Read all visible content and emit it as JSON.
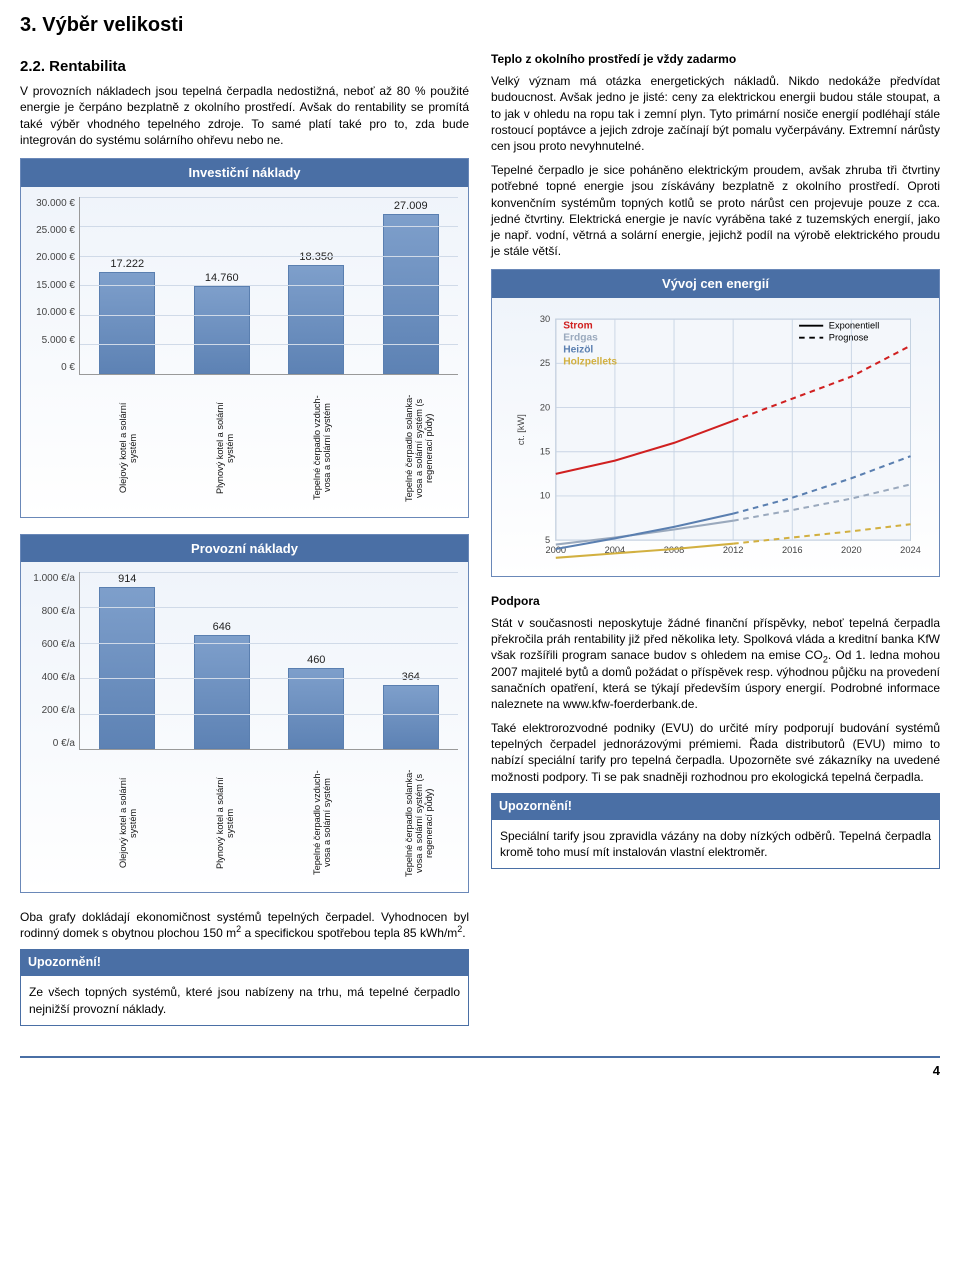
{
  "title": "3. Výběr velikosti",
  "left": {
    "section_no_title": "2.2.   Rentabilita",
    "intro_para": "V provozních nákladech jsou tepelná čerpadla nedostižná, neboť až 80 % použité energie je čerpáno bezplatně z okolního prostředí. Avšak do rentability se promítá také výběr vhodného tepelného zdroje. To samé platí také pro to, zda bude integrován do systému solárního ohřevu nebo ne.",
    "invest_chart": {
      "title": "Investiční náklady",
      "currency_suffix": " €",
      "ymax": 30000,
      "yticks": [
        "30.000 €",
        "25.000 €",
        "20.000 €",
        "15.000 €",
        "10.000 €",
        "5.000 €",
        "0 €"
      ],
      "bars": [
        {
          "value": 17222,
          "label": "17.222"
        },
        {
          "value": 14760,
          "label": "14.760"
        },
        {
          "value": 18350,
          "label": "18.350"
        },
        {
          "value": 27009,
          "label": "27.009"
        }
      ],
      "categories": [
        "Olejový kotel a solární systém",
        "Plynový kotel a solární systém",
        "Tepelné čerpadlo vzduch-vosa a solární systém",
        "Tepelné čerpadlo solanka-vosa a solární systém (s regenerací půdy)"
      ],
      "bar_color": "#7e9fcb",
      "grid_color": "#d0dae8"
    },
    "oper_chart": {
      "title": "Provozní náklady",
      "ymax": 1000,
      "yticks": [
        "1.000 €/a",
        "800 €/a",
        "600 €/a",
        "400 €/a",
        "200 €/a",
        "0 €/a"
      ],
      "bars": [
        {
          "value": 914,
          "label": "914"
        },
        {
          "value": 646,
          "label": "646"
        },
        {
          "value": 460,
          "label": "460"
        },
        {
          "value": 364,
          "label": "364"
        }
      ],
      "categories": [
        "Olejový kotel a solární systém",
        "Plynový kotel a solární systém",
        "Tepelné čerpadlo vzduch-vosa a solární systém",
        "Tepelné čerpadlo solanka-vosa a solární systém (s regenerací půdy)"
      ],
      "bar_color": "#7e9fcb",
      "grid_color": "#d0dae8"
    },
    "conclusion_para_pre": "Oba grafy dokládají ekonomičnost systémů tepelných čerpadel. Vyhodnocen byl rodinný domek s obytnou plochou 150 m",
    "conclusion_para_mid": " a specifickou spotřebou tepla 85 kWh/m",
    "conclusion_para_post": ".",
    "notice_title": "Upozornění!",
    "notice_body": "Ze všech topných systémů, které jsou nabízeny na trhu, má tepelné čerpadlo nejnižší provozní náklady."
  },
  "right": {
    "headline": "Teplo z okolního prostředí je vždy zadarmo",
    "para1": "Velký význam má otázka energetických nákladů. Nikdo nedokáže předvídat budoucnost. Avšak jedno je jisté: ceny za elektrickou energii budou stále stoupat, a to jak v ohledu na ropu tak i zemní plyn. Tyto primární nosiče energií podléhají stále rostoucí poptávce a jejich zdroje začínají být pomalu vyčerpávány. Extremní nárůsty cen jsou proto nevyhnutelné.",
    "para2": "Tepelné čerpadlo je sice poháněno elektrickým proudem, avšak zhruba tři čtvrtiny potřebné topné energie jsou získávány bezplatně z okolního prostředí. Oproti konvenčním systémům topných kotlů se proto nárůst cen projevuje pouze z cca. jedné čtvrtiny. Elektrická energie je navíc vyráběna také z tuzemských energií, jako je např. vodní, větrná a solární energie, jejichž podíl na výrobě elektrického proudu je stále větší.",
    "energy_chart": {
      "title": "Vývoj cen energií",
      "ylabel": "ct. [kW]",
      "xticks": [
        "2000",
        "2004",
        "2008",
        "2012",
        "2016",
        "2020",
        "2024"
      ],
      "yticks": [
        "30",
        "25",
        "20",
        "15",
        "10",
        "5"
      ],
      "legend_style": [
        {
          "label": "Exponentiell",
          "dash": "solid"
        },
        {
          "label": "Prognose",
          "dash": "dash"
        }
      ],
      "series": [
        {
          "name": "Strom",
          "color": "#d02020",
          "points_solid": [
            [
              0,
              12.5
            ],
            [
              1,
              14
            ],
            [
              2,
              16
            ],
            [
              3,
              18.5
            ]
          ],
          "points_dash": [
            [
              3,
              18.5
            ],
            [
              4,
              21
            ],
            [
              5,
              23.5
            ],
            [
              6,
              27
            ]
          ]
        },
        {
          "name": "Erdgas",
          "color": "#9aa9bd",
          "points_solid": [
            [
              0,
              4.5
            ],
            [
              1,
              5.3
            ],
            [
              2,
              6.2
            ],
            [
              3,
              7.2
            ]
          ],
          "points_dash": [
            [
              3,
              7.2
            ],
            [
              4,
              8.4
            ],
            [
              5,
              9.7
            ],
            [
              6,
              11.3
            ]
          ]
        },
        {
          "name": "Heizöl",
          "color": "#5a7fb0",
          "points_solid": [
            [
              0,
              4
            ],
            [
              1,
              5.2
            ],
            [
              2,
              6.5
            ],
            [
              3,
              8
            ]
          ],
          "points_dash": [
            [
              3,
              8
            ],
            [
              4,
              9.8
            ],
            [
              5,
              12
            ],
            [
              6,
              14.5
            ]
          ]
        },
        {
          "name": "Holzpellets",
          "color": "#d2b040",
          "points_solid": [
            [
              0,
              3
            ],
            [
              1,
              3.5
            ],
            [
              2,
              4
            ],
            [
              3,
              4.6
            ]
          ],
          "points_dash": [
            [
              3,
              4.6
            ],
            [
              4,
              5.3
            ],
            [
              5,
              6
            ],
            [
              6,
              6.8
            ]
          ]
        }
      ],
      "background": "#eef3fa",
      "grid_color": "#c8d4e4"
    },
    "support_title": "Podpora",
    "support_para1_pre": "Stát v současnosti neposkytuje žádné finanční příspěvky, neboť tepelná čerpadla překročila práh rentability již před několika lety. Spolková vláda a kreditní banka KfW však rozšířili program sanace budov s ohledem na emise CO",
    "support_para1_post": ". Od 1. ledna mohou 2007 majitelé bytů a domů požádat o příspěvek resp. výhodnou půjčku na provedení sanačních opatření, která se týkají především úspory energií. Podrobné informace naleznete na www.kfw-foerderbank.de.",
    "support_para2": "Také elektrorozvodné podniky (EVU) do určité míry podporují budování systémů tepelných čerpadel jednorázovými prémiemi. Řada distributorů (EVU) mimo to nabízí speciální tarify pro tepelná čerpadla. Upozorněte své zákazníky na uvedené možnosti podpory. Ti se pak snadněji rozhodnou pro ekologická tepelná čerpadla.",
    "notice_title": "Upozornění!",
    "notice_body": "Speciální tarify jsou zpravidla vázány na doby nízkých odběrů. Tepelná čerpadla kromě toho musí mít instalován vlastní elektroměr."
  },
  "page_number": "4"
}
